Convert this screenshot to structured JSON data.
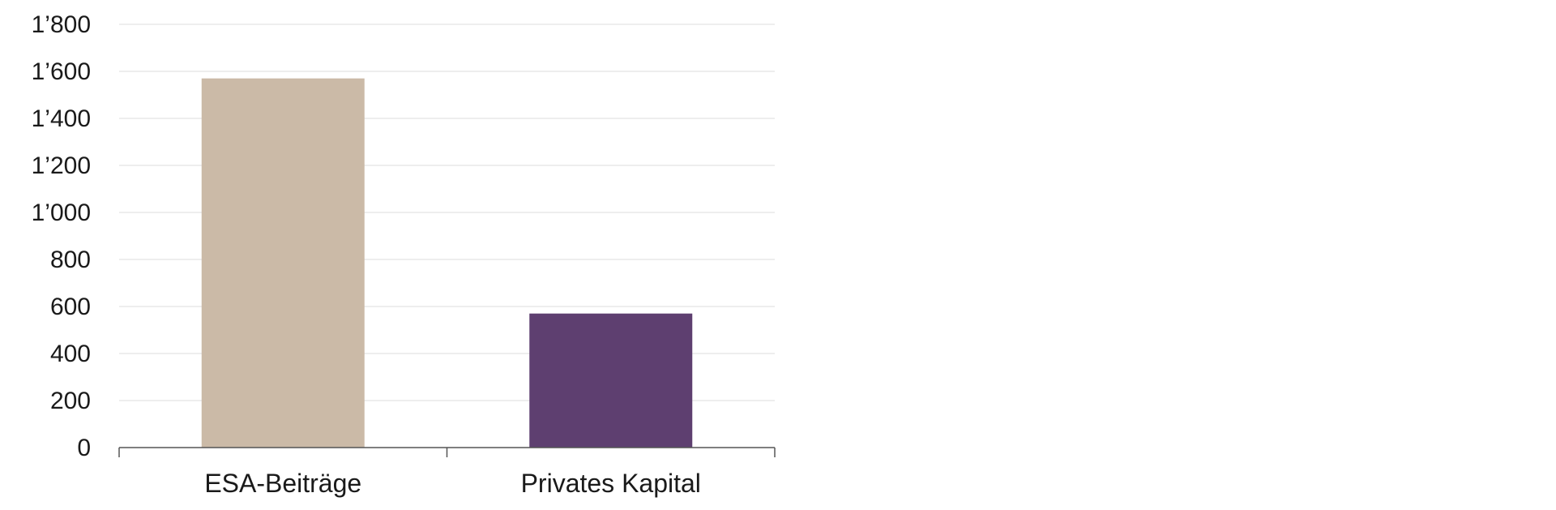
{
  "chart_data": {
    "type": "bar",
    "title": "",
    "xlabel": "",
    "ylabel": "",
    "categories": [
      "ESA-Beiträge",
      "Privates Kapital"
    ],
    "values": [
      1570,
      570
    ],
    "colors": [
      "#cbbaa7",
      "#5e3f70"
    ],
    "ylim": [
      0,
      1800
    ],
    "yticks": [
      0,
      200,
      400,
      600,
      800,
      1000,
      1200,
      1400,
      1600,
      1800
    ],
    "ytick_labels": [
      "0",
      "200",
      "400",
      "600",
      "800",
      "1’000",
      "1’200",
      "1’400",
      "1’600",
      "1’800"
    ],
    "grid": true,
    "grid_color": "#e3e3e3",
    "axis_color": "#555555",
    "legend": "none"
  }
}
